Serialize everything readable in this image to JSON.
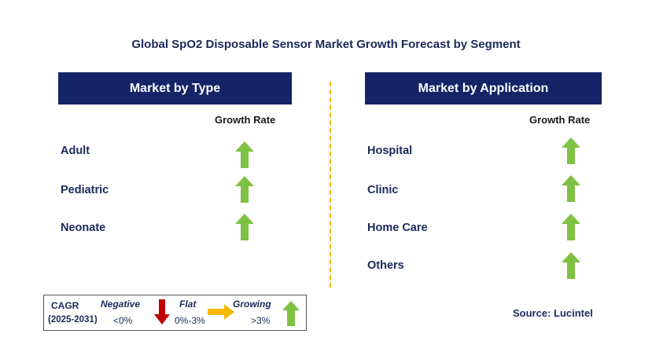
{
  "title": "Global SpO2 Disposable Sensor Market Growth Forecast by Segment",
  "left_panel": {
    "header": "Market by Type",
    "growth_label": "Growth Rate",
    "items": [
      {
        "label": "Adult",
        "growth": "growing"
      },
      {
        "label": "Pediatric",
        "growth": "growing"
      },
      {
        "label": "Neonate",
        "growth": "growing"
      }
    ]
  },
  "right_panel": {
    "header": "Market by Application",
    "growth_label": "Growth Rate",
    "items": [
      {
        "label": "Hospital",
        "growth": "growing"
      },
      {
        "label": "Clinic",
        "growth": "growing"
      },
      {
        "label": "Home Care",
        "growth": "growing"
      },
      {
        "label": "Others",
        "growth": "growing"
      }
    ]
  },
  "legend": {
    "cagr_label": "CAGR",
    "period": "(2025-2031)",
    "negative_label": "Negative",
    "negative_range": "<0%",
    "flat_label": "Flat",
    "flat_range": "0%-3%",
    "growing_label": "Growing",
    "growing_range": ">3%"
  },
  "source": "Source: Lucintel",
  "colors": {
    "header_bg": "#142466",
    "growing_arrow": "#7dc242",
    "negative_arrow": "#c00000",
    "flat_arrow": "#f5b800",
    "divider": "#f2b705"
  }
}
